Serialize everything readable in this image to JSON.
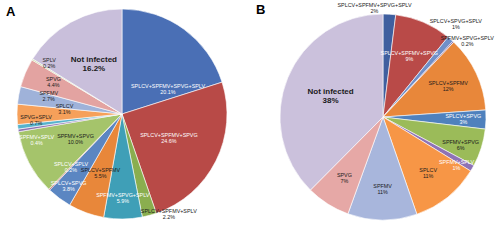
{
  "chart_data": [
    {
      "type": "pie",
      "title": "A",
      "categories": [
        "SPLCV+SPFMV+SPVG+SPLV",
        "SPLCV+SPFMV+SPVG",
        "SPLCV+SPFMV+SPLV",
        "SPFMV+SPVG+SPLV",
        "SPLCV+SPFMV",
        "SPLCV+SPVG",
        "SPLCV+SPLV",
        "SPFMV+SPVG",
        "SPFMV+SPLV",
        "SPVG+SPLV",
        "SPLCV",
        "SPFMV",
        "SPVG",
        "SPLV",
        "Not infected"
      ],
      "values": [
        20.1,
        24.6,
        2.2,
        5.9,
        5.5,
        3.8,
        0.2,
        10.0,
        0.4,
        0.7,
        3.1,
        2.7,
        4.4,
        0.2,
        16.2
      ],
      "value_labels": [
        "20.1%",
        "24.6%",
        "2.2%",
        "5.9%",
        "5.5%",
        "3.8%",
        "0.2%",
        "10.0%",
        "0.4%",
        "0.7%",
        "3.1%",
        "2.7%",
        "4.4%",
        "0.2%",
        "16.2%"
      ],
      "colors": [
        "#4a6fb5",
        "#b84a47",
        "#8aae4f",
        "#3f9fb7",
        "#e8873a",
        "#5b86c2",
        "#c25b58",
        "#a5c46b",
        "#8b70b0",
        "#57b3cc",
        "#f6a05a",
        "#9fb2d9",
        "#e3a3a1",
        "#c3d69b",
        "#c9bfdb"
      ],
      "data_labels": true
    },
    {
      "type": "pie",
      "title": "B",
      "categories": [
        "SPLCV+SPFMV+SPVG+SPLV",
        "SPLCV+SPFMV+SPVG",
        "SPLCV+SPVG+SPLV",
        "SPFMV+SPVG+SPLV",
        "SPLCV+SPFMV",
        "SPLCV+SPVG",
        "SPFMV+SPVG",
        "SPFMV+SPLV",
        "SPLCV",
        "SPFMV",
        "SPVG",
        "Not infected"
      ],
      "values": [
        2,
        9,
        1,
        0.2,
        12,
        3,
        6,
        1,
        11,
        11,
        7,
        38
      ],
      "value_labels": [
        "2%",
        "9%",
        "1%",
        "0.2%",
        "12%",
        "3%",
        "6%",
        "1%",
        "11%",
        "11%",
        "7%",
        "38%"
      ],
      "colors": [
        "#3f5f9f",
        "#b94a48",
        "#6f8fc9",
        "#8064a2",
        "#e8873a",
        "#4f81bd",
        "#9bbb59",
        "#8e72b6",
        "#f79646",
        "#a8b6dc",
        "#e6a8a6",
        "#cbc1dc"
      ],
      "data_labels": true
    }
  ]
}
